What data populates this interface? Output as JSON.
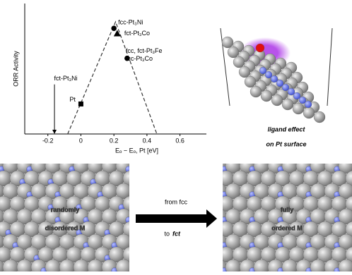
{
  "chart_data": {
    "type": "scatter",
    "x_label": "Eₒ − Eₒ, Pt [eV]",
    "y_label": "ORR Activity",
    "xlim": [
      -0.34,
      0.76
    ],
    "xticks": [
      -0.2,
      0,
      0.2,
      0.4,
      0.6
    ],
    "ylim": [
      0,
      1
    ],
    "points": {
      "x": [
        0.0,
        0.2,
        0.22,
        0.28
      ],
      "values": [
        0.23,
        0.81,
        0.77,
        0.58
      ],
      "markers": [
        "square",
        "circle",
        "triangle",
        "circle"
      ],
      "labels": [
        [
          "Pt"
        ],
        [
          "fcc-Pt₃Ni"
        ],
        [
          "fct-Pt₃Co"
        ],
        [
          "fcc, fct-Pt₃Fe",
          "fcc-Pt₃Co"
        ]
      ]
    },
    "volcano": {
      "x": [
        -0.08,
        0.21,
        0.46
      ],
      "values": [
        0,
        0.86,
        0
      ]
    },
    "arrow": {
      "label": "fct-Pt₃Ni",
      "x": -0.16,
      "values": [
        0.38,
        0
      ]
    },
    "annotations": [
      "ligand effect",
      "on Pt surface",
      "randomly",
      "disordered M",
      "fully",
      "ordered M",
      "from fcc",
      "to",
      "fct"
    ]
  }
}
